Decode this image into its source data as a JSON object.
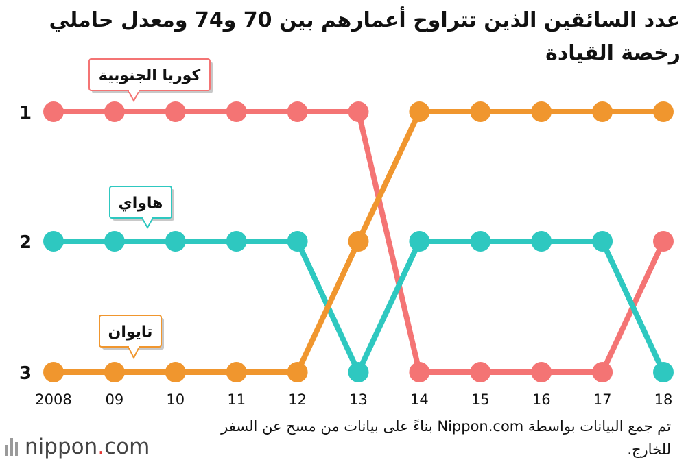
{
  "title": "عدد السائقين الذين تتراوح أعمارهم بين 70 و74 ومعدل حاملي رخصة القيادة",
  "source_note": "تم جمع البيانات بواسطة Nippon.com بناءً على بيانات من مسح عن السفر للخارج.",
  "brand": {
    "name": "nippon",
    "dot": ".",
    "tld": "com"
  },
  "chart_data": {
    "type": "line",
    "title": "عدد السائقين الذين تتراوح أعمارهم بين 70 و74 ومعدل حاملي رخصة القيادة",
    "x": [
      "2008",
      "09",
      "10",
      "11",
      "12",
      "13",
      "14",
      "15",
      "16",
      "17",
      "18"
    ],
    "y_ticks": [
      1,
      2,
      3
    ],
    "ylim": [
      1,
      3
    ],
    "y_inverted": true,
    "series": [
      {
        "name": "كوريا الجنوبية",
        "color": "#f47474",
        "values": [
          1,
          1,
          1,
          1,
          1,
          1,
          3,
          3,
          3,
          3,
          2
        ]
      },
      {
        "name": "هاواي",
        "color": "#2ec8c0",
        "values": [
          2,
          2,
          2,
          2,
          2,
          3,
          2,
          2,
          2,
          2,
          3
        ]
      },
      {
        "name": "تايوان",
        "color": "#f0962e",
        "values": [
          3,
          3,
          3,
          3,
          3,
          2,
          1,
          1,
          1,
          1,
          1
        ]
      }
    ]
  }
}
